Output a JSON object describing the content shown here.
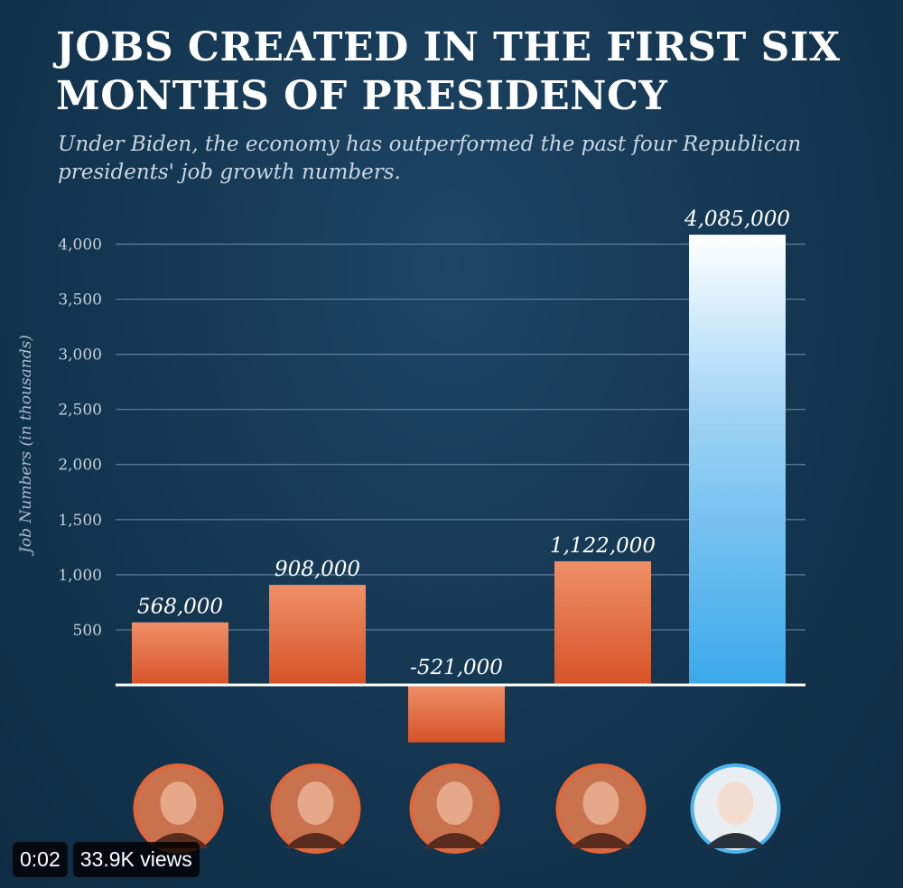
{
  "chart_data": {
    "type": "bar",
    "title": "JOBS CREATED IN THE FIRST SIX MONTHS OF PRESIDENCY",
    "subtitle": "Under Biden, the economy has outperformed the past four Republican presidents' job growth numbers.",
    "ylabel": "Job Numbers (in thousands)",
    "ylim": [
      -521,
      4085
    ],
    "yticks": [
      500,
      1000,
      1500,
      2000,
      2500,
      3000,
      3500,
      4000
    ],
    "ytick_labels": [
      "500",
      "1,000",
      "1,500",
      "2,000",
      "2,500",
      "3,000",
      "3,500",
      "4,000"
    ],
    "grid": true,
    "values": [
      568,
      908,
      -521,
      1122,
      4085
    ],
    "value_labels": [
      "568,000",
      "908,000",
      "-521,000",
      "1,122,000",
      "4,085,000"
    ],
    "bar_colors": [
      "#e0663a",
      "#e0663a",
      "#e0663a",
      "#e0663a",
      "#4fb4ec"
    ]
  },
  "video": {
    "time": "0:02",
    "views": "33.9K views"
  }
}
